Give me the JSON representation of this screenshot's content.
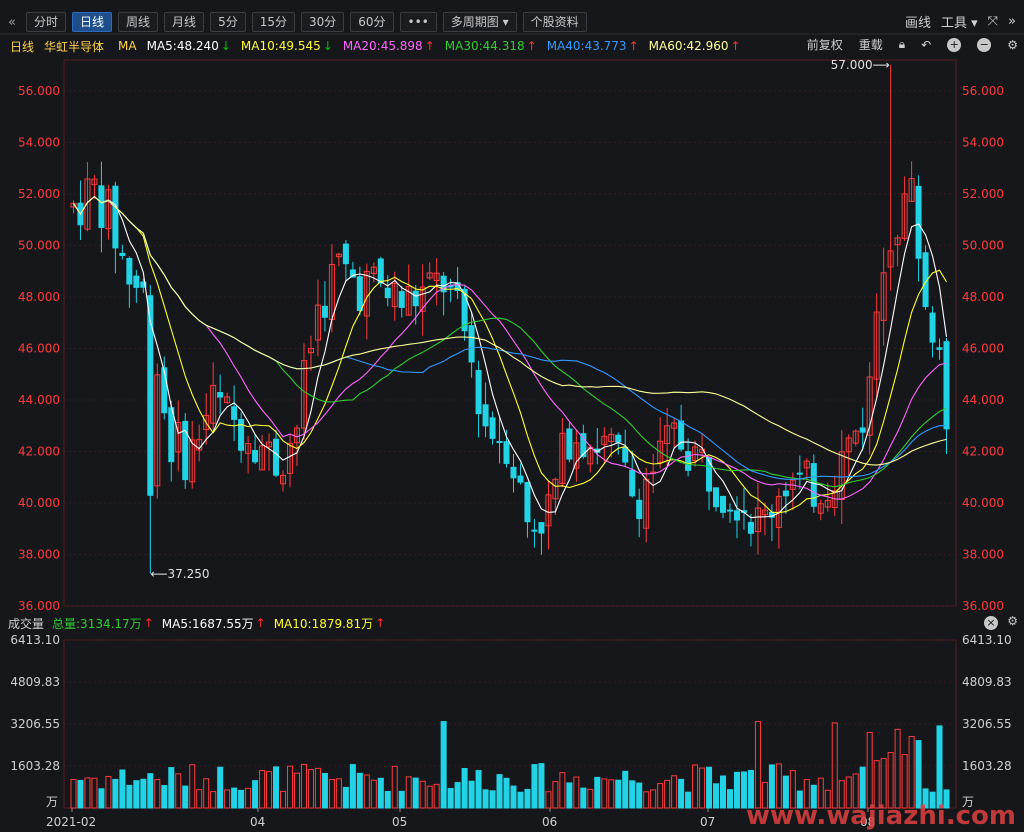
{
  "toolbar": {
    "collapse_icon": "«",
    "expand_icon": "»",
    "buttons": [
      "分时",
      "日线",
      "周线",
      "月线",
      "5分",
      "15分",
      "30分",
      "60分",
      "•••",
      "多周期图 ▾",
      "个股资料"
    ],
    "active_index": 1,
    "right": {
      "draw": "画线",
      "tools": "工具 ▾",
      "fullscreen_icon": "⤧"
    }
  },
  "info": {
    "period": "日线",
    "stock_name": "华虹半导体",
    "ma_label": "MA",
    "ma": [
      {
        "label": "MA5:48.240",
        "color": "#ffffff",
        "arrow": "↓",
        "arrow_color": "#00c000"
      },
      {
        "label": "MA10:49.545",
        "color": "#ffff33",
        "arrow": "↓",
        "arrow_color": "#00c000"
      },
      {
        "label": "MA20:45.898",
        "color": "#ff66ff",
        "arrow": "↑",
        "arrow_color": "#ff3030"
      },
      {
        "label": "MA30:44.318",
        "color": "#33cc33",
        "arrow": "↑",
        "arrow_color": "#ff3030"
      },
      {
        "label": "MA40:43.773",
        "color": "#3399ff",
        "arrow": "↑",
        "arrow_color": "#ff3030"
      },
      {
        "label": "MA60:42.960",
        "color": "#ffff99",
        "arrow": "↑",
        "arrow_color": "#ff3030"
      }
    ],
    "right": {
      "adjust": "前复权",
      "overlay": "重载"
    }
  },
  "price_axis": {
    "ticks": [
      "56.000",
      "54.000",
      "52.000",
      "50.000",
      "48.000",
      "46.000",
      "44.000",
      "42.000",
      "40.000",
      "38.000",
      "36.000"
    ],
    "high_label": "57.000",
    "low_label": "37.250"
  },
  "volume": {
    "title": "成交量",
    "total": "总量:3134.17万",
    "ma5": "MA5:1687.55万",
    "ma10": "MA10:1879.81万",
    "ticks": [
      "6413.10",
      "4809.83",
      "3206.55",
      "1603.28"
    ],
    "unit": "万"
  },
  "x_axis": {
    "labels": [
      "2021-02",
      "04",
      "05",
      "06",
      "07",
      "08"
    ]
  },
  "watermark": "www.wajiazhi.com",
  "chart_data": {
    "type": "candlestick",
    "ylim": [
      36,
      57.2
    ],
    "series_note": "daily OHLC, approx",
    "high": 57.0,
    "low": 37.25,
    "ma5": [
      48.24
    ],
    "ma10": [
      49.545
    ],
    "ma20": [
      45.898
    ],
    "ma30": [
      44.318
    ],
    "ma40": [
      43.773
    ],
    "ma60": [
      42.96
    ],
    "volume_ylim": [
      0,
      6413.1
    ],
    "volume_total": 3134.17
  }
}
